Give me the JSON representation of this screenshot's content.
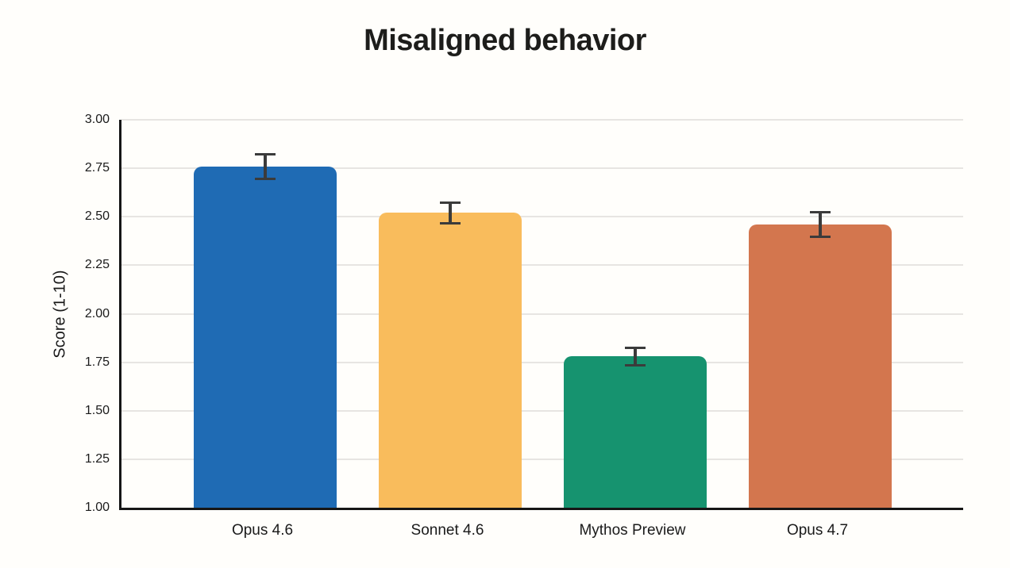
{
  "chart_data": {
    "type": "bar",
    "title": "Misaligned behavior",
    "xlabel": "",
    "ylabel": "Score (1-10)",
    "categories": [
      "Opus 4.6",
      "Sonnet 4.6",
      "Mythos Preview",
      "Opus 4.7"
    ],
    "values": [
      2.76,
      2.52,
      1.78,
      2.46
    ],
    "error_bars": [
      0.07,
      0.06,
      0.05,
      0.07
    ],
    "bar_colors": [
      "#1f6bb4",
      "#f9bc5c",
      "#16936f",
      "#d3764e"
    ],
    "error_bar_color": "#3b3b3b",
    "ylim": [
      1.0,
      3.0
    ],
    "yticks": [
      {
        "value": 3.0,
        "label": "3.00"
      },
      {
        "value": 2.75,
        "label": "2.75"
      },
      {
        "value": 2.5,
        "label": "2.50"
      },
      {
        "value": 2.25,
        "label": "2.25"
      },
      {
        "value": 2.0,
        "label": "2.00"
      },
      {
        "value": 1.75,
        "label": "1.75"
      },
      {
        "value": 1.5,
        "label": "1.50"
      },
      {
        "value": 1.25,
        "label": "1.25"
      },
      {
        "value": 1.0,
        "label": "1.00"
      }
    ],
    "grid": "horizontal",
    "gridline_color": "#e7e5e2",
    "axis_color": "#161616",
    "legend": null
  }
}
